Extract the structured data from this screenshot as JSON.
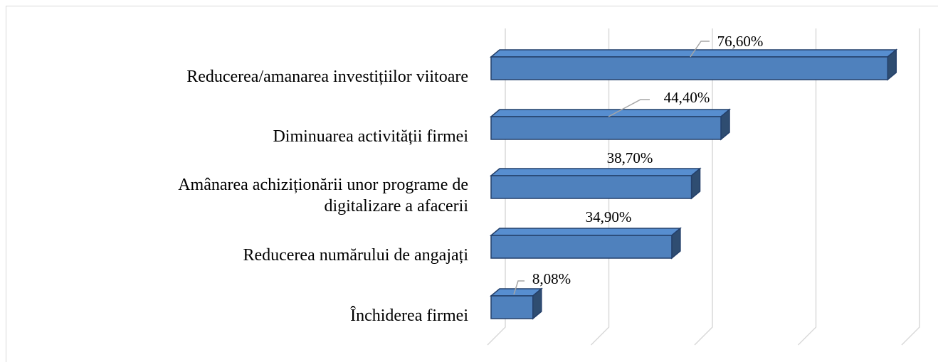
{
  "chart_data": {
    "type": "bar3d_horizontal",
    "categories": [
      "Reducerea/amanarea investițiilor viitoare",
      "Diminuarea activității firmei",
      "Amânarea achiziționării unor programe de\ndigitalizare a afacerii",
      "Reducerea numărului de angajați",
      "Închiderea firmei"
    ],
    "values": [
      76.6,
      44.4,
      38.7,
      34.9,
      8.08
    ],
    "value_labels": [
      "76,60%",
      "44,40%",
      "38,70%",
      "34,90%",
      "8,08%"
    ],
    "color": "#4f81bd",
    "xlim": [
      0,
      80
    ],
    "xticks": [
      0,
      20,
      40,
      60,
      80
    ],
    "grid": true
  }
}
